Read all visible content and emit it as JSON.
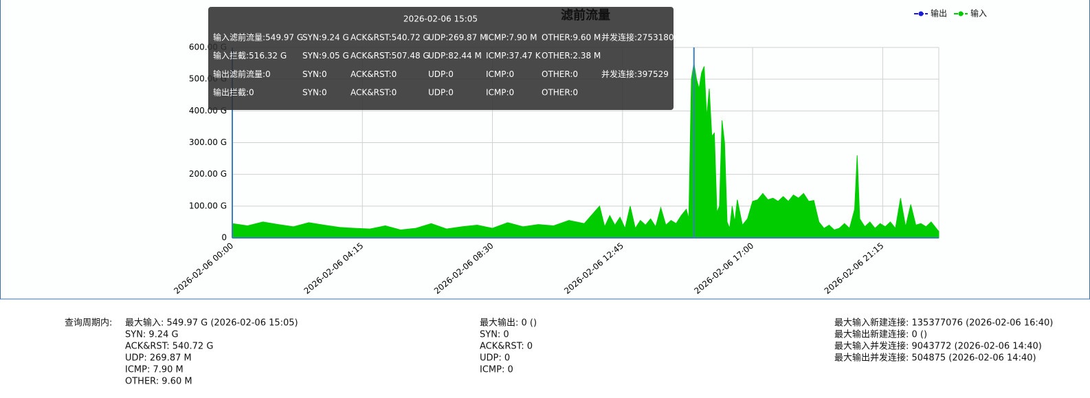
{
  "chart_data": {
    "type": "area",
    "title": "滤前流量",
    "legend": "top-right",
    "grid": true,
    "x": [
      "2026-02-06 00:00",
      "2026-02-06 00:30",
      "2026-02-06 01:00",
      "2026-02-06 01:30",
      "2026-02-06 02:00",
      "2026-02-06 02:30",
      "2026-02-06 03:00",
      "2026-02-06 03:30",
      "2026-02-06 04:00",
      "2026-02-06 04:30",
      "2026-02-06 05:00",
      "2026-02-06 05:30",
      "2026-02-06 06:00",
      "2026-02-06 06:30",
      "2026-02-06 07:00",
      "2026-02-06 07:30",
      "2026-02-06 08:00",
      "2026-02-06 08:30",
      "2026-02-06 09:00",
      "2026-02-06 09:30",
      "2026-02-06 10:00",
      "2026-02-06 10:30",
      "2026-02-06 11:00",
      "2026-02-06 11:30",
      "2026-02-06 12:00",
      "2026-02-06 12:10",
      "2026-02-06 12:20",
      "2026-02-06 12:30",
      "2026-02-06 12:40",
      "2026-02-06 12:50",
      "2026-02-06 13:00",
      "2026-02-06 13:10",
      "2026-02-06 13:20",
      "2026-02-06 13:30",
      "2026-02-06 13:40",
      "2026-02-06 13:50",
      "2026-02-06 14:00",
      "2026-02-06 14:10",
      "2026-02-06 14:20",
      "2026-02-06 14:30",
      "2026-02-06 14:40",
      "2026-02-06 14:50",
      "2026-02-06 14:55",
      "2026-02-06 15:00",
      "2026-02-06 15:05",
      "2026-02-06 15:10",
      "2026-02-06 15:15",
      "2026-02-06 15:20",
      "2026-02-06 15:25",
      "2026-02-06 15:30",
      "2026-02-06 15:35",
      "2026-02-06 15:40",
      "2026-02-06 15:45",
      "2026-02-06 15:50",
      "2026-02-06 15:55",
      "2026-02-06 16:00",
      "2026-02-06 16:05",
      "2026-02-06 16:10",
      "2026-02-06 16:15",
      "2026-02-06 16:20",
      "2026-02-06 16:25",
      "2026-02-06 16:30",
      "2026-02-06 16:40",
      "2026-02-06 16:50",
      "2026-02-06 17:00",
      "2026-02-06 17:10",
      "2026-02-06 17:20",
      "2026-02-06 17:30",
      "2026-02-06 17:40",
      "2026-02-06 17:50",
      "2026-02-06 18:00",
      "2026-02-06 18:10",
      "2026-02-06 18:20",
      "2026-02-06 18:30",
      "2026-02-06 18:40",
      "2026-02-06 18:50",
      "2026-02-06 19:00",
      "2026-02-06 19:10",
      "2026-02-06 19:20",
      "2026-02-06 19:30",
      "2026-02-06 19:40",
      "2026-02-06 19:50",
      "2026-02-06 20:00",
      "2026-02-06 20:10",
      "2026-02-06 20:20",
      "2026-02-06 20:25",
      "2026-02-06 20:30",
      "2026-02-06 20:40",
      "2026-02-06 20:50",
      "2026-02-06 21:00",
      "2026-02-06 21:10",
      "2026-02-06 21:20",
      "2026-02-06 21:30",
      "2026-02-06 21:40",
      "2026-02-06 21:50",
      "2026-02-06 22:00",
      "2026-02-06 22:10",
      "2026-02-06 22:20",
      "2026-02-06 22:30",
      "2026-02-06 22:40",
      "2026-02-06 22:50",
      "2026-02-06 23:00",
      "2026-02-06 23:05"
    ],
    "series": [
      {
        "name": "输出",
        "color": "#1a1adb",
        "values": [
          0,
          0,
          0,
          0,
          0,
          0,
          0,
          0,
          0,
          0,
          0,
          0,
          0,
          0,
          0,
          0,
          0,
          0,
          0,
          0,
          0,
          0,
          0,
          0,
          0,
          0,
          0,
          0,
          0,
          0,
          0,
          0,
          0,
          0,
          0,
          0,
          0,
          0,
          0,
          0,
          0,
          0,
          0,
          0,
          0,
          0,
          0,
          0,
          0,
          0,
          0,
          0,
          0,
          0,
          0,
          0,
          0,
          0,
          0,
          0,
          0,
          0,
          0,
          0,
          0,
          0,
          0,
          0,
          0,
          0,
          0,
          0,
          0,
          0,
          0,
          0,
          0,
          0,
          0,
          0,
          0,
          0,
          0,
          0,
          0,
          0,
          0,
          0,
          0,
          0,
          0,
          0,
          0,
          0,
          0,
          0,
          0,
          0,
          0,
          0,
          0,
          0,
          0
        ]
      },
      {
        "name": "输入",
        "color": "#00cc00",
        "values": [
          45,
          38,
          50,
          42,
          35,
          48,
          40,
          33,
          30,
          28,
          38,
          25,
          30,
          45,
          28,
          35,
          40,
          30,
          48,
          35,
          42,
          38,
          55,
          45,
          100,
          35,
          70,
          40,
          65,
          30,
          100,
          30,
          55,
          40,
          60,
          35,
          95,
          40,
          55,
          45,
          70,
          90,
          60,
          500,
          549.97,
          500,
          470,
          520,
          540,
          380,
          470,
          320,
          330,
          80,
          100,
          370,
          300,
          50,
          30,
          100,
          50,
          120,
          40,
          60,
          115,
          120,
          140,
          120,
          125,
          115,
          130,
          115,
          135,
          125,
          140,
          115,
          118,
          50,
          30,
          40,
          25,
          30,
          45,
          30,
          90,
          260,
          60,
          35,
          50,
          30,
          45,
          35,
          50,
          30,
          125,
          35,
          105,
          40,
          45,
          35,
          50,
          30,
          20
        ]
      }
    ],
    "xlim": [
      "2026-02-06 00:00",
      "2026-02-06 23:05"
    ],
    "xticks": [
      "2026-02-06 00:00",
      "2026-02-06 04:15",
      "2026-02-06 08:30",
      "2026-02-06 12:45",
      "2026-02-06 17:00",
      "2026-02-06 21:15"
    ],
    "ylim": [
      0,
      600
    ],
    "yticks": [
      0,
      {
        "value": 100,
        "label": "100.00 G"
      },
      {
        "value": 200,
        "label": "200.00 G"
      },
      {
        "value": 300,
        "label": "300.00 G"
      },
      {
        "value": 400,
        "label": "400.00 G"
      },
      {
        "value": 500,
        "label": "500.00 G"
      },
      {
        "value": 600,
        "label": "600.00 G"
      }
    ]
  },
  "tooltip": {
    "title": "2026-02-06 15:05",
    "rows": [
      [
        "输入滤前流量:549.97 G",
        "SYN:9.24 G",
        "ACK&RST:540.72 G",
        "UDP:269.87 M",
        "ICMP:7.90 M",
        "OTHER:9.60 M",
        "并发连接:2753180"
      ],
      [
        "输入拦截:516.32 G",
        "SYN:9.05 G",
        "ACK&RST:507.48 G",
        "UDP:82.44 M",
        "ICMP:37.47 K",
        "OTHER:2.38 M"
      ],
      [
        "输出滤前流量:0",
        "SYN:0",
        "ACK&RST:0",
        "UDP:0",
        "ICMP:0",
        "OTHER:0",
        "并发连接:397529"
      ],
      [
        "输出拦截:0",
        "SYN:0",
        "ACK&RST:0",
        "UDP:0",
        "ICMP:0",
        "OTHER:0"
      ]
    ]
  },
  "summary": {
    "label": "查询周期内:",
    "columns": [
      [
        "最大输入: 549.97 G (2026-02-06 15:05)",
        "SYN: 9.24 G",
        "ACK&RST: 540.72 G",
        "UDP: 269.87 M",
        "ICMP: 7.90 M",
        "OTHER: 9.60 M"
      ],
      [
        "最大输出: 0 ()",
        "SYN: 0",
        "ACK&RST: 0",
        "UDP: 0",
        "ICMP: 0"
      ],
      [
        "最大输入新建连接: 135377076 (2026-02-06 16:40)",
        "最大输出新建连接: 0 ()",
        "最大输入并发连接: 9043772 (2026-02-06 14:40)",
        "最大输出并发连接: 504875 (2026-02-06 14:40)"
      ]
    ]
  }
}
